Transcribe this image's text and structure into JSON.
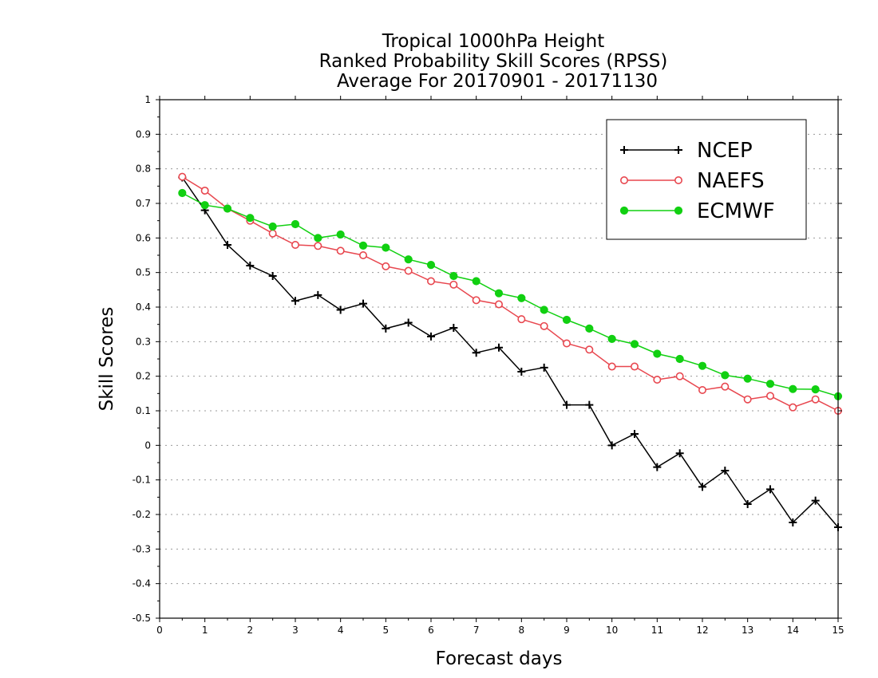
{
  "chart_data": {
    "type": "line",
    "title_lines": [
      "Tropical 1000hPa Height",
      "Ranked Probability Skill Scores (RPSS)",
      "Average For 20170901 - 20171130"
    ],
    "xlabel": "Forecast days",
    "ylabel": "Skill Scores",
    "xlim": [
      0,
      15
    ],
    "ylim": [
      -0.5,
      1
    ],
    "xticks": [
      0,
      1,
      2,
      3,
      4,
      5,
      6,
      7,
      8,
      9,
      10,
      11,
      12,
      13,
      14,
      15
    ],
    "yticks": [
      -0.5,
      -0.4,
      -0.3,
      -0.2,
      -0.1,
      0,
      0.1,
      0.2,
      0.3,
      0.4,
      0.5,
      0.6,
      0.7,
      0.8,
      0.9,
      1
    ],
    "ytick_labels": [
      "-0.5",
      "-0.4",
      "-0.3",
      "-0.2",
      "-0.1",
      "0",
      "0.1",
      "0.2",
      "0.3",
      "0.4",
      "0.5",
      "0.6",
      "0.7",
      "0.8",
      "0.9",
      "1"
    ],
    "grid": "horizontal dotted",
    "legend_position": "top-right",
    "x": [
      0.5,
      1,
      1.5,
      2,
      2.5,
      3,
      3.5,
      4,
      4.5,
      5,
      5.5,
      6,
      6.5,
      7,
      7.5,
      8,
      8.5,
      9,
      9.5,
      10,
      10.5,
      11,
      11.5,
      12,
      12.5,
      13,
      13.5,
      14,
      14.5,
      15
    ],
    "series": [
      {
        "name": "NCEP",
        "color": "#000000",
        "marker": "plus",
        "values": [
          0.775,
          0.68,
          0.58,
          0.52,
          0.49,
          0.418,
          0.435,
          0.392,
          0.41,
          0.338,
          0.355,
          0.315,
          0.34,
          0.268,
          0.283,
          0.213,
          0.225,
          0.117,
          0.117,
          0.0,
          0.033,
          -0.063,
          -0.023,
          -0.12,
          -0.073,
          -0.17,
          -0.127,
          -0.223,
          -0.16,
          -0.237
        ]
      },
      {
        "name": "NAEFS",
        "color": "#e8474f",
        "marker": "open-circle",
        "values": [
          0.777,
          0.737,
          0.685,
          0.65,
          0.613,
          0.58,
          0.577,
          0.563,
          0.55,
          0.518,
          0.505,
          0.475,
          0.465,
          0.42,
          0.408,
          0.365,
          0.345,
          0.295,
          0.277,
          0.228,
          0.228,
          0.19,
          0.2,
          0.16,
          0.17,
          0.133,
          0.143,
          0.11,
          0.133,
          0.1
        ]
      },
      {
        "name": "ECMWF",
        "color": "#11d011",
        "marker": "filled-circle",
        "values": [
          0.73,
          0.695,
          0.685,
          0.658,
          0.633,
          0.64,
          0.6,
          0.61,
          0.578,
          0.572,
          0.538,
          0.522,
          0.49,
          0.475,
          0.44,
          0.426,
          0.392,
          0.363,
          0.338,
          0.308,
          0.293,
          0.265,
          0.25,
          0.23,
          0.203,
          0.193,
          0.178,
          0.163,
          0.162,
          0.142
        ]
      }
    ]
  }
}
